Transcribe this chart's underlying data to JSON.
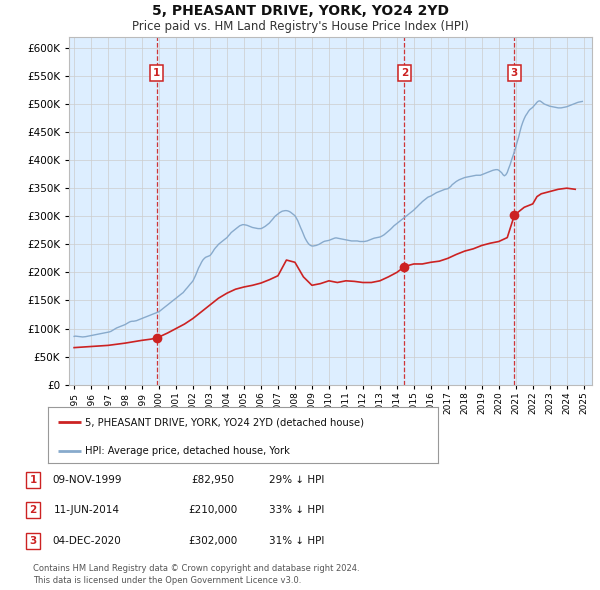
{
  "title": "5, PHEASANT DRIVE, YORK, YO24 2YD",
  "subtitle": "Price paid vs. HM Land Registry's House Price Index (HPI)",
  "background_color": "#ffffff",
  "plot_bg_color": "#ddeeff",
  "hpi_color": "#88aacc",
  "price_color": "#cc2222",
  "sale_marker_color": "#cc2222",
  "sale_marker_size": 7,
  "ylim": [
    0,
    620000
  ],
  "yticks": [
    0,
    50000,
    100000,
    150000,
    200000,
    250000,
    300000,
    350000,
    400000,
    450000,
    500000,
    550000,
    600000
  ],
  "xlim_start": 1994.7,
  "xlim_end": 2025.5,
  "sales": [
    {
      "label": "1",
      "date_str": "09-NOV-1999",
      "date_x": 1999.86,
      "price": 82950,
      "pct": "29%"
    },
    {
      "label": "2",
      "date_str": "11-JUN-2014",
      "date_x": 2014.44,
      "price": 210000,
      "pct": "33%"
    },
    {
      "label": "3",
      "date_str": "04-DEC-2020",
      "date_x": 2020.92,
      "price": 302000,
      "pct": "31%"
    }
  ],
  "vline_color": "#cc2222",
  "legend_label_price": "5, PHEASANT DRIVE, YORK, YO24 2YD (detached house)",
  "legend_label_hpi": "HPI: Average price, detached house, York",
  "footer1": "Contains HM Land Registry data © Crown copyright and database right 2024.",
  "footer2": "This data is licensed under the Open Government Licence v3.0.",
  "hpi_data_x": [
    1995.0,
    1995.08,
    1995.17,
    1995.25,
    1995.33,
    1995.42,
    1995.5,
    1995.58,
    1995.67,
    1995.75,
    1995.83,
    1995.92,
    1996.0,
    1996.08,
    1996.17,
    1996.25,
    1996.33,
    1996.42,
    1996.5,
    1996.58,
    1996.67,
    1996.75,
    1996.83,
    1996.92,
    1997.0,
    1997.08,
    1997.17,
    1997.25,
    1997.33,
    1997.42,
    1997.5,
    1997.58,
    1997.67,
    1997.75,
    1997.83,
    1997.92,
    1998.0,
    1998.08,
    1998.17,
    1998.25,
    1998.33,
    1998.42,
    1998.5,
    1998.58,
    1998.67,
    1998.75,
    1998.83,
    1998.92,
    1999.0,
    1999.08,
    1999.17,
    1999.25,
    1999.33,
    1999.42,
    1999.5,
    1999.58,
    1999.67,
    1999.75,
    1999.83,
    1999.92,
    2000.0,
    2000.08,
    2000.17,
    2000.25,
    2000.33,
    2000.42,
    2000.5,
    2000.58,
    2000.67,
    2000.75,
    2000.83,
    2000.92,
    2001.0,
    2001.08,
    2001.17,
    2001.25,
    2001.33,
    2001.42,
    2001.5,
    2001.58,
    2001.67,
    2001.75,
    2001.83,
    2001.92,
    2002.0,
    2002.08,
    2002.17,
    2002.25,
    2002.33,
    2002.42,
    2002.5,
    2002.58,
    2002.67,
    2002.75,
    2002.83,
    2002.92,
    2003.0,
    2003.08,
    2003.17,
    2003.25,
    2003.33,
    2003.42,
    2003.5,
    2003.58,
    2003.67,
    2003.75,
    2003.83,
    2003.92,
    2004.0,
    2004.08,
    2004.17,
    2004.25,
    2004.33,
    2004.42,
    2004.5,
    2004.58,
    2004.67,
    2004.75,
    2004.83,
    2004.92,
    2005.0,
    2005.08,
    2005.17,
    2005.25,
    2005.33,
    2005.42,
    2005.5,
    2005.58,
    2005.67,
    2005.75,
    2005.83,
    2005.92,
    2006.0,
    2006.08,
    2006.17,
    2006.25,
    2006.33,
    2006.42,
    2006.5,
    2006.58,
    2006.67,
    2006.75,
    2006.83,
    2006.92,
    2007.0,
    2007.08,
    2007.17,
    2007.25,
    2007.33,
    2007.42,
    2007.5,
    2007.58,
    2007.67,
    2007.75,
    2007.83,
    2007.92,
    2008.0,
    2008.08,
    2008.17,
    2008.25,
    2008.33,
    2008.42,
    2008.5,
    2008.58,
    2008.67,
    2008.75,
    2008.83,
    2008.92,
    2009.0,
    2009.08,
    2009.17,
    2009.25,
    2009.33,
    2009.42,
    2009.5,
    2009.58,
    2009.67,
    2009.75,
    2009.83,
    2009.92,
    2010.0,
    2010.08,
    2010.17,
    2010.25,
    2010.33,
    2010.42,
    2010.5,
    2010.58,
    2010.67,
    2010.75,
    2010.83,
    2010.92,
    2011.0,
    2011.08,
    2011.17,
    2011.25,
    2011.33,
    2011.42,
    2011.5,
    2011.58,
    2011.67,
    2011.75,
    2011.83,
    2011.92,
    2012.0,
    2012.08,
    2012.17,
    2012.25,
    2012.33,
    2012.42,
    2012.5,
    2012.58,
    2012.67,
    2012.75,
    2012.83,
    2012.92,
    2013.0,
    2013.08,
    2013.17,
    2013.25,
    2013.33,
    2013.42,
    2013.5,
    2013.58,
    2013.67,
    2013.75,
    2013.83,
    2013.92,
    2014.0,
    2014.08,
    2014.17,
    2014.25,
    2014.33,
    2014.42,
    2014.5,
    2014.58,
    2014.67,
    2014.75,
    2014.83,
    2014.92,
    2015.0,
    2015.08,
    2015.17,
    2015.25,
    2015.33,
    2015.42,
    2015.5,
    2015.58,
    2015.67,
    2015.75,
    2015.83,
    2015.92,
    2016.0,
    2016.08,
    2016.17,
    2016.25,
    2016.33,
    2016.42,
    2016.5,
    2016.58,
    2016.67,
    2016.75,
    2016.83,
    2016.92,
    2017.0,
    2017.08,
    2017.17,
    2017.25,
    2017.33,
    2017.42,
    2017.5,
    2017.58,
    2017.67,
    2017.75,
    2017.83,
    2017.92,
    2018.0,
    2018.08,
    2018.17,
    2018.25,
    2018.33,
    2018.42,
    2018.5,
    2018.58,
    2018.67,
    2018.75,
    2018.83,
    2018.92,
    2019.0,
    2019.08,
    2019.17,
    2019.25,
    2019.33,
    2019.42,
    2019.5,
    2019.58,
    2019.67,
    2019.75,
    2019.83,
    2019.92,
    2020.0,
    2020.08,
    2020.17,
    2020.25,
    2020.33,
    2020.42,
    2020.5,
    2020.58,
    2020.67,
    2020.75,
    2020.83,
    2020.92,
    2021.0,
    2021.08,
    2021.17,
    2021.25,
    2021.33,
    2021.42,
    2021.5,
    2021.58,
    2021.67,
    2021.75,
    2021.83,
    2021.92,
    2022.0,
    2022.08,
    2022.17,
    2022.25,
    2022.33,
    2022.42,
    2022.5,
    2022.58,
    2022.67,
    2022.75,
    2022.83,
    2022.92,
    2023.0,
    2023.08,
    2023.17,
    2023.25,
    2023.33,
    2023.42,
    2023.5,
    2023.58,
    2023.67,
    2023.75,
    2023.83,
    2023.92,
    2024.0,
    2024.08,
    2024.17,
    2024.25,
    2024.33,
    2024.42,
    2024.5,
    2024.58,
    2024.67,
    2024.75,
    2024.83,
    2024.92
  ],
  "hpi_data_y": [
    86000,
    86500,
    86200,
    86000,
    85800,
    85500,
    85000,
    85200,
    85500,
    86000,
    86500,
    87000,
    87500,
    88000,
    88500,
    89000,
    89500,
    90000,
    90500,
    91000,
    91500,
    92000,
    92500,
    93000,
    93500,
    94000,
    95000,
    96500,
    98000,
    99500,
    101000,
    102000,
    103000,
    104000,
    105000,
    106000,
    107000,
    108500,
    110000,
    111500,
    112500,
    113000,
    113000,
    113500,
    114000,
    115000,
    116000,
    117000,
    118000,
    119000,
    120000,
    121000,
    122000,
    123000,
    124000,
    125000,
    126000,
    127000,
    128000,
    129000,
    130000,
    132000,
    134000,
    136000,
    138000,
    140000,
    142000,
    144000,
    146000,
    148000,
    150000,
    152000,
    154000,
    156000,
    158000,
    160000,
    162000,
    164000,
    167000,
    170000,
    173000,
    176000,
    179000,
    182000,
    185000,
    190000,
    196000,
    202000,
    208000,
    213000,
    218000,
    222000,
    225000,
    227000,
    228000,
    229000,
    230000,
    233000,
    237000,
    241000,
    244000,
    247000,
    250000,
    252000,
    254000,
    256000,
    258000,
    260000,
    262000,
    265000,
    268000,
    271000,
    273000,
    275000,
    277000,
    279000,
    281000,
    283000,
    284000,
    285000,
    285000,
    284500,
    284000,
    283000,
    282000,
    281000,
    280000,
    279500,
    279000,
    278500,
    278000,
    278000,
    278000,
    279000,
    280500,
    282000,
    284000,
    286000,
    288000,
    291000,
    294000,
    297000,
    300000,
    302000,
    304000,
    306000,
    307500,
    309000,
    309500,
    310000,
    310000,
    309500,
    308500,
    307000,
    305000,
    303000,
    301000,
    297000,
    292000,
    286000,
    280000,
    274000,
    268000,
    262000,
    257000,
    253000,
    250000,
    248000,
    247000,
    247000,
    247500,
    248000,
    249000,
    250000,
    251500,
    253000,
    254500,
    255500,
    256000,
    256500,
    257000,
    258000,
    259000,
    260000,
    261000,
    261500,
    261000,
    260500,
    260000,
    259500,
    259000,
    258500,
    258000,
    257500,
    257000,
    256500,
    256000,
    256000,
    256000,
    256000,
    256000,
    255500,
    255000,
    255000,
    255000,
    255000,
    255500,
    256000,
    257000,
    258000,
    259000,
    260000,
    261000,
    261500,
    262000,
    262500,
    263000,
    264000,
    265500,
    267000,
    269000,
    271000,
    273000,
    275500,
    278000,
    280500,
    283000,
    285000,
    287000,
    289000,
    291000,
    293000,
    295000,
    297000,
    299000,
    301000,
    303000,
    305000,
    307000,
    309000,
    311000,
    313500,
    316000,
    318500,
    321000,
    323500,
    326000,
    328000,
    330000,
    332000,
    334000,
    335000,
    336000,
    337500,
    339000,
    340500,
    342000,
    343000,
    344000,
    345000,
    346000,
    347000,
    348000,
    348500,
    349000,
    351000,
    353000,
    356000,
    358000,
    360000,
    362000,
    363500,
    365000,
    366000,
    367000,
    368000,
    369000,
    369500,
    370000,
    370500,
    371000,
    371500,
    372000,
    372500,
    373000,
    373000,
    373000,
    373000,
    374000,
    375000,
    376000,
    377000,
    378000,
    379000,
    380000,
    381000,
    382000,
    382500,
    383000,
    383000,
    382000,
    380000,
    377500,
    374000,
    372000,
    374000,
    378000,
    385000,
    392000,
    400000,
    407000,
    415000,
    423000,
    432000,
    441000,
    451000,
    460000,
    468000,
    474000,
    479000,
    483000,
    487000,
    490000,
    492000,
    494000,
    497000,
    500000,
    503000,
    505000,
    505500,
    504000,
    502000,
    500000,
    499000,
    498000,
    497000,
    496000,
    495500,
    495000,
    494500,
    494000,
    493500,
    493000,
    493000,
    493000,
    493500,
    494000,
    494500,
    495000,
    496000,
    497000,
    498000,
    499000,
    500000,
    501000,
    502000,
    503000,
    503500,
    504000,
    504500
  ],
  "price_data_x": [
    1995.0,
    1995.5,
    1996.0,
    1996.5,
    1997.0,
    1997.5,
    1998.0,
    1998.5,
    1999.0,
    1999.5,
    1999.86,
    2000.0,
    2000.5,
    2001.0,
    2001.5,
    2002.0,
    2002.5,
    2003.0,
    2003.5,
    2004.0,
    2004.5,
    2005.0,
    2005.5,
    2006.0,
    2006.5,
    2007.0,
    2007.5,
    2008.0,
    2008.5,
    2009.0,
    2009.5,
    2010.0,
    2010.5,
    2011.0,
    2011.5,
    2012.0,
    2012.5,
    2013.0,
    2013.5,
    2014.0,
    2014.44,
    2014.75,
    2015.0,
    2015.5,
    2016.0,
    2016.5,
    2017.0,
    2017.5,
    2018.0,
    2018.5,
    2019.0,
    2019.5,
    2020.0,
    2020.5,
    2020.92,
    2021.25,
    2021.5,
    2022.0,
    2022.25,
    2022.5,
    2023.0,
    2023.5,
    2024.0,
    2024.5
  ],
  "price_data_y": [
    66000,
    67000,
    68000,
    69000,
    70000,
    72000,
    74000,
    76500,
    79000,
    81000,
    82950,
    85000,
    92000,
    100000,
    108000,
    118000,
    130000,
    142000,
    154000,
    163000,
    170000,
    174000,
    177000,
    181000,
    187000,
    194000,
    222000,
    218000,
    192000,
    177000,
    180000,
    185000,
    182000,
    185000,
    184000,
    182000,
    182000,
    185000,
    192000,
    200000,
    210000,
    213000,
    215000,
    215000,
    218000,
    220000,
    225000,
    232000,
    238000,
    242000,
    248000,
    252000,
    255000,
    262000,
    302000,
    310000,
    316000,
    322000,
    335000,
    340000,
    344000,
    348000,
    350000,
    348000
  ]
}
